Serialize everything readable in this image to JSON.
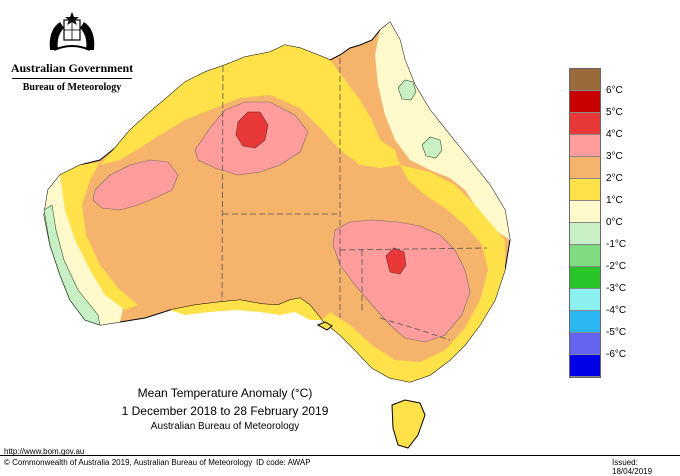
{
  "logo": {
    "title": "Australian Government",
    "subtitle": "Bureau of Meteorology"
  },
  "map": {
    "title": "Mean Temperature Anomaly (°C)",
    "period": "1 December 2018 to 28 February 2019",
    "source": "Australian Bureau of Meteorology",
    "variable": "mean temperature anomaly",
    "units": "°C"
  },
  "legend": {
    "items": [
      {
        "label": "",
        "color": "#9a6a3a"
      },
      {
        "label": "6°C",
        "color": "#c80000"
      },
      {
        "label": "5°C",
        "color": "#e83838"
      },
      {
        "label": "4°C",
        "color": "#ff9c9c"
      },
      {
        "label": "3°C",
        "color": "#f5b36b"
      },
      {
        "label": "2°C",
        "color": "#ffe14a"
      },
      {
        "label": "1°C",
        "color": "#fff9cc"
      },
      {
        "label": "0°C",
        "color": "#c8f0c4"
      },
      {
        "label": "-1°C",
        "color": "#80dc80"
      },
      {
        "label": "-2°C",
        "color": "#29c429"
      },
      {
        "label": "-3°C",
        "color": "#8cf0f0"
      },
      {
        "label": "-4°C",
        "color": "#2ab6f0"
      },
      {
        "label": "-5°C",
        "color": "#6464f0"
      },
      {
        "label": "-6°C",
        "color": "#0000e6"
      }
    ]
  },
  "footer": {
    "url": "http://www.bom.gov.au",
    "copyright": "© Commonwealth of Australia 2019, Australian Bureau of Meteorology",
    "id_code": "ID code: AWAP",
    "issued": "Issued: 18/04/2019"
  },
  "colors": {
    "anom_0_1": "#fff9cc",
    "anom_1_2": "#ffe14a",
    "anom_2_3": "#f5b36b",
    "anom_3_4": "#ff9c9c",
    "anom_4_5": "#e83838",
    "anom_m1_0": "#c8f0c4"
  }
}
